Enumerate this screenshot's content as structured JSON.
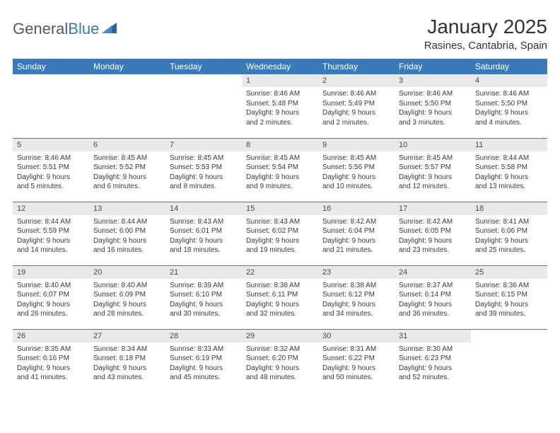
{
  "logo": {
    "text1": "General",
    "text2": "Blue"
  },
  "title": "January 2025",
  "location": "Rasines, Cantabria, Spain",
  "header_bg": "#3a7ab8",
  "header_fg": "#ffffff",
  "daynum_bg": "#e8e9eb",
  "row_border": "#3a7ab8",
  "weekdays": [
    "Sunday",
    "Monday",
    "Tuesday",
    "Wednesday",
    "Thursday",
    "Friday",
    "Saturday"
  ],
  "weeks": [
    [
      {
        "n": "",
        "lines": []
      },
      {
        "n": "",
        "lines": []
      },
      {
        "n": "",
        "lines": []
      },
      {
        "n": "1",
        "lines": [
          "Sunrise: 8:46 AM",
          "Sunset: 5:48 PM",
          "Daylight: 9 hours",
          "and 2 minutes."
        ]
      },
      {
        "n": "2",
        "lines": [
          "Sunrise: 8:46 AM",
          "Sunset: 5:49 PM",
          "Daylight: 9 hours",
          "and 2 minutes."
        ]
      },
      {
        "n": "3",
        "lines": [
          "Sunrise: 8:46 AM",
          "Sunset: 5:50 PM",
          "Daylight: 9 hours",
          "and 3 minutes."
        ]
      },
      {
        "n": "4",
        "lines": [
          "Sunrise: 8:46 AM",
          "Sunset: 5:50 PM",
          "Daylight: 9 hours",
          "and 4 minutes."
        ]
      }
    ],
    [
      {
        "n": "5",
        "lines": [
          "Sunrise: 8:46 AM",
          "Sunset: 5:51 PM",
          "Daylight: 9 hours",
          "and 5 minutes."
        ]
      },
      {
        "n": "6",
        "lines": [
          "Sunrise: 8:45 AM",
          "Sunset: 5:52 PM",
          "Daylight: 9 hours",
          "and 6 minutes."
        ]
      },
      {
        "n": "7",
        "lines": [
          "Sunrise: 8:45 AM",
          "Sunset: 5:53 PM",
          "Daylight: 9 hours",
          "and 8 minutes."
        ]
      },
      {
        "n": "8",
        "lines": [
          "Sunrise: 8:45 AM",
          "Sunset: 5:54 PM",
          "Daylight: 9 hours",
          "and 9 minutes."
        ]
      },
      {
        "n": "9",
        "lines": [
          "Sunrise: 8:45 AM",
          "Sunset: 5:56 PM",
          "Daylight: 9 hours",
          "and 10 minutes."
        ]
      },
      {
        "n": "10",
        "lines": [
          "Sunrise: 8:45 AM",
          "Sunset: 5:57 PM",
          "Daylight: 9 hours",
          "and 12 minutes."
        ]
      },
      {
        "n": "11",
        "lines": [
          "Sunrise: 8:44 AM",
          "Sunset: 5:58 PM",
          "Daylight: 9 hours",
          "and 13 minutes."
        ]
      }
    ],
    [
      {
        "n": "12",
        "lines": [
          "Sunrise: 8:44 AM",
          "Sunset: 5:59 PM",
          "Daylight: 9 hours",
          "and 14 minutes."
        ]
      },
      {
        "n": "13",
        "lines": [
          "Sunrise: 8:44 AM",
          "Sunset: 6:00 PM",
          "Daylight: 9 hours",
          "and 16 minutes."
        ]
      },
      {
        "n": "14",
        "lines": [
          "Sunrise: 8:43 AM",
          "Sunset: 6:01 PM",
          "Daylight: 9 hours",
          "and 18 minutes."
        ]
      },
      {
        "n": "15",
        "lines": [
          "Sunrise: 8:43 AM",
          "Sunset: 6:02 PM",
          "Daylight: 9 hours",
          "and 19 minutes."
        ]
      },
      {
        "n": "16",
        "lines": [
          "Sunrise: 8:42 AM",
          "Sunset: 6:04 PM",
          "Daylight: 9 hours",
          "and 21 minutes."
        ]
      },
      {
        "n": "17",
        "lines": [
          "Sunrise: 8:42 AM",
          "Sunset: 6:05 PM",
          "Daylight: 9 hours",
          "and 23 minutes."
        ]
      },
      {
        "n": "18",
        "lines": [
          "Sunrise: 8:41 AM",
          "Sunset: 6:06 PM",
          "Daylight: 9 hours",
          "and 25 minutes."
        ]
      }
    ],
    [
      {
        "n": "19",
        "lines": [
          "Sunrise: 8:40 AM",
          "Sunset: 6:07 PM",
          "Daylight: 9 hours",
          "and 26 minutes."
        ]
      },
      {
        "n": "20",
        "lines": [
          "Sunrise: 8:40 AM",
          "Sunset: 6:09 PM",
          "Daylight: 9 hours",
          "and 28 minutes."
        ]
      },
      {
        "n": "21",
        "lines": [
          "Sunrise: 8:39 AM",
          "Sunset: 6:10 PM",
          "Daylight: 9 hours",
          "and 30 minutes."
        ]
      },
      {
        "n": "22",
        "lines": [
          "Sunrise: 8:38 AM",
          "Sunset: 6:11 PM",
          "Daylight: 9 hours",
          "and 32 minutes."
        ]
      },
      {
        "n": "23",
        "lines": [
          "Sunrise: 8:38 AM",
          "Sunset: 6:12 PM",
          "Daylight: 9 hours",
          "and 34 minutes."
        ]
      },
      {
        "n": "24",
        "lines": [
          "Sunrise: 8:37 AM",
          "Sunset: 6:14 PM",
          "Daylight: 9 hours",
          "and 36 minutes."
        ]
      },
      {
        "n": "25",
        "lines": [
          "Sunrise: 8:36 AM",
          "Sunset: 6:15 PM",
          "Daylight: 9 hours",
          "and 39 minutes."
        ]
      }
    ],
    [
      {
        "n": "26",
        "lines": [
          "Sunrise: 8:35 AM",
          "Sunset: 6:16 PM",
          "Daylight: 9 hours",
          "and 41 minutes."
        ]
      },
      {
        "n": "27",
        "lines": [
          "Sunrise: 8:34 AM",
          "Sunset: 6:18 PM",
          "Daylight: 9 hours",
          "and 43 minutes."
        ]
      },
      {
        "n": "28",
        "lines": [
          "Sunrise: 8:33 AM",
          "Sunset: 6:19 PM",
          "Daylight: 9 hours",
          "and 45 minutes."
        ]
      },
      {
        "n": "29",
        "lines": [
          "Sunrise: 8:32 AM",
          "Sunset: 6:20 PM",
          "Daylight: 9 hours",
          "and 48 minutes."
        ]
      },
      {
        "n": "30",
        "lines": [
          "Sunrise: 8:31 AM",
          "Sunset: 6:22 PM",
          "Daylight: 9 hours",
          "and 50 minutes."
        ]
      },
      {
        "n": "31",
        "lines": [
          "Sunrise: 8:30 AM",
          "Sunset: 6:23 PM",
          "Daylight: 9 hours",
          "and 52 minutes."
        ]
      },
      {
        "n": "",
        "lines": []
      }
    ]
  ]
}
